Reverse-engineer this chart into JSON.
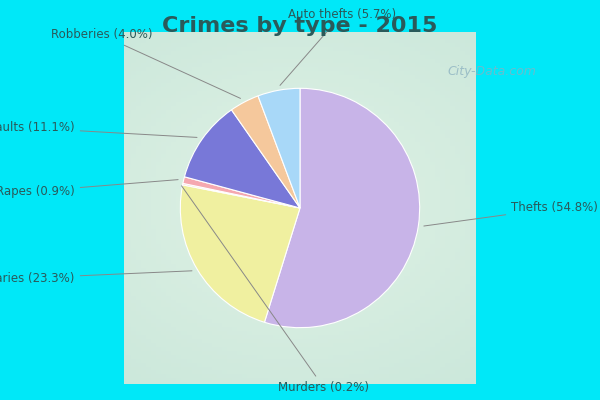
{
  "title": "Crimes by type - 2015",
  "title_fontsize": 16,
  "title_fontweight": "bold",
  "title_color": "#2a5a5a",
  "label_names": [
    "Thefts",
    "Burglaries",
    "Murders",
    "Rapes",
    "Assaults",
    "Robberies",
    "Auto thefts"
  ],
  "percentages": [
    "54.8%",
    "23.3%",
    "0.2%",
    "0.9%",
    "11.1%",
    "4.0%",
    "5.7%"
  ],
  "values": [
    54.8,
    23.3,
    0.2,
    0.9,
    11.1,
    4.0,
    5.7
  ],
  "colors": [
    "#c8b4e8",
    "#f0f0a0",
    "#f5b0b8",
    "#f5a8b0",
    "#7878d8",
    "#f5c89c",
    "#a8d8f8"
  ],
  "cyan_border": "#00e8f8",
  "chart_bg_center": "#e0f0e8",
  "watermark": "City-Data.com",
  "figsize": [
    6.0,
    4.0
  ],
  "dpi": 100,
  "label_color": "#2a5a5a",
  "label_fontsize": 8.5
}
